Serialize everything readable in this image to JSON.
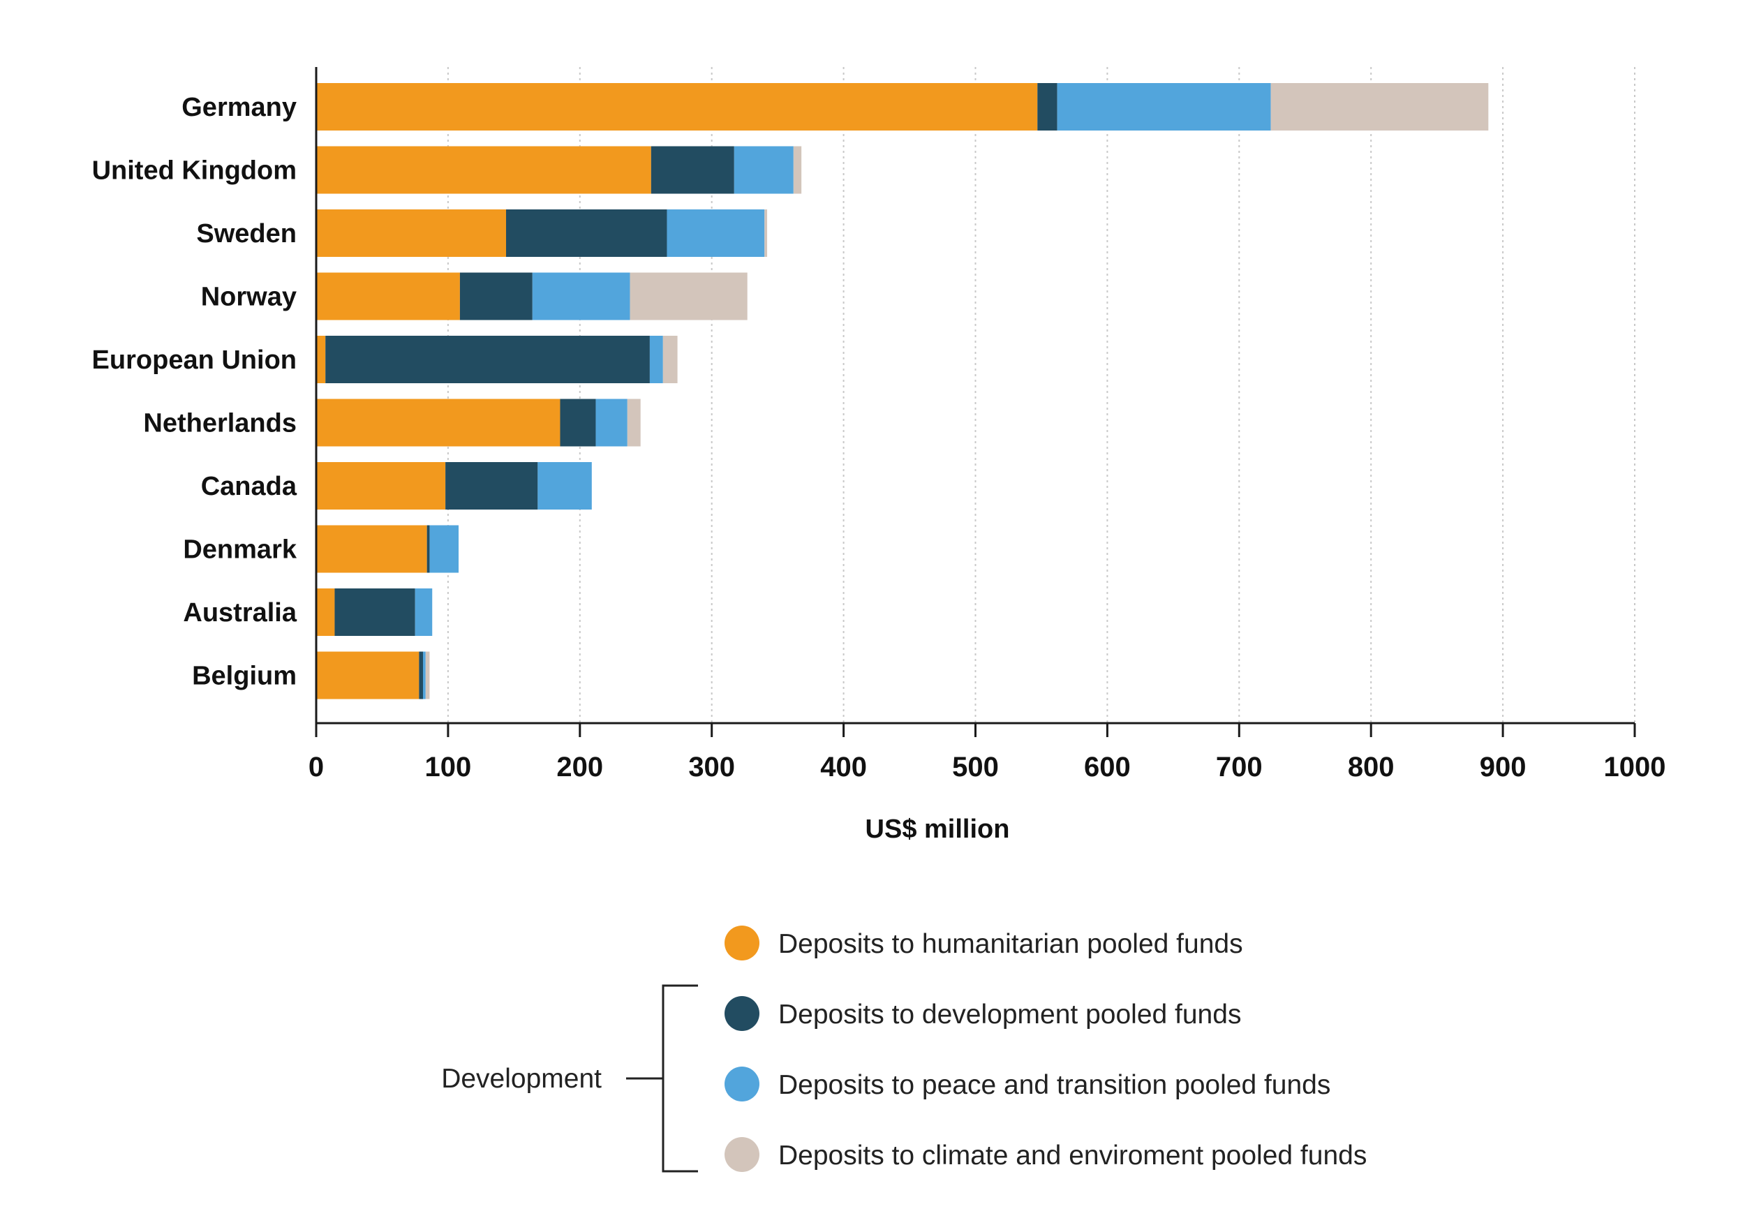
{
  "chart_data": {
    "type": "bar",
    "orientation": "horizontal",
    "stacked": true,
    "categories": [
      "Germany",
      "United Kingdom",
      "Sweden",
      "Norway",
      "European Union",
      "Netherlands",
      "Canada",
      "Denmark",
      "Australia",
      "Belgium"
    ],
    "series": [
      {
        "name": "Deposits to humanitarian pooled funds",
        "color": "#F2991E",
        "values": [
          547,
          254,
          144,
          109,
          7,
          185,
          98,
          84,
          14,
          78
        ]
      },
      {
        "name": "Deposits to development pooled funds",
        "color": "#224C61",
        "values": [
          15,
          63,
          122,
          55,
          246,
          27,
          70,
          2,
          61,
          3
        ]
      },
      {
        "name": "Deposits to peace and transition pooled funds",
        "color": "#52A5DC",
        "values": [
          162,
          45,
          74,
          74,
          10,
          24,
          41,
          22,
          13,
          2
        ]
      },
      {
        "name": "Deposits to climate and enviroment pooled funds",
        "color": "#D3C5BB",
        "values": [
          165,
          6,
          2,
          89,
          11,
          10,
          0,
          0,
          0,
          3
        ]
      }
    ],
    "xlabel": "US$ million",
    "ylabel": "",
    "xlim": [
      0,
      1000
    ],
    "xticks": [
      0,
      100,
      200,
      300,
      400,
      500,
      600,
      700,
      800,
      900,
      1000
    ],
    "grid": "vertical dashed",
    "legend": {
      "position": "bottom",
      "group_label": "Development",
      "group_members": [
        1,
        2,
        3
      ]
    }
  }
}
